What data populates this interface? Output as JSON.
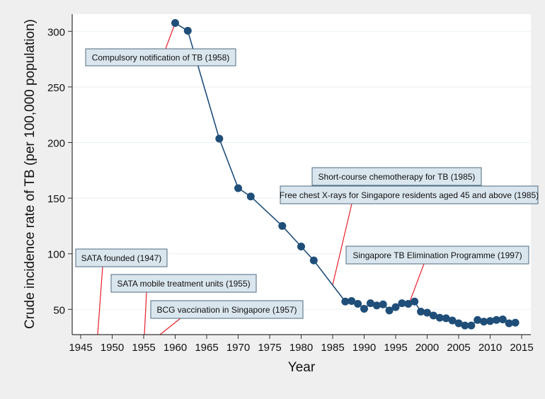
{
  "chart_data": {
    "type": "line",
    "title": "",
    "xlabel": "Year",
    "ylabel": "Crude incidence rate of TB (per 100,000 population)",
    "xlim": [
      1943.5,
      2016.5
    ],
    "ylim": [
      27.5,
      315
    ],
    "x_ticks": [
      1945,
      1950,
      1955,
      1960,
      1965,
      1970,
      1975,
      1980,
      1985,
      1990,
      1995,
      2000,
      2005,
      2010,
      2015
    ],
    "y_ticks": [
      50,
      100,
      150,
      200,
      250,
      300
    ],
    "grid": true,
    "series_color": "#1f4e79",
    "annotation_line_color": "#e8202a",
    "annotation_box_fill": "#dae6ee",
    "annotation_box_border": "#4e6a80",
    "series": [
      {
        "x": [
          1960,
          1962,
          1967,
          1970,
          1972,
          1977,
          1980,
          1982,
          1987,
          1988,
          1989,
          1990,
          1991,
          1992,
          1993,
          1994,
          1995,
          1996,
          1997,
          1998,
          1999,
          2000,
          2001,
          2002,
          2003,
          2004,
          2005,
          2006,
          2007,
          2008,
          2009,
          2010,
          2011,
          2012,
          2013,
          2014
        ],
        "y": [
          307.5,
          300.5,
          203.5,
          159,
          151.5,
          125,
          106.5,
          94,
          57,
          57.5,
          55,
          50.5,
          55.5,
          53.5,
          54.5,
          49,
          52,
          55.5,
          55,
          57,
          48,
          47,
          44.5,
          42.5,
          42,
          40,
          37.5,
          35.5,
          35.5,
          40.5,
          39,
          39.5,
          40.5,
          41,
          37.5,
          38
        ]
      }
    ],
    "annotations": [
      {
        "text": "Compulsory notification of TB (1958)",
        "year": 1958
      },
      {
        "text": "Short-course chemotherapy for TB (1985)",
        "year": 1985
      },
      {
        "text": "Free chest X-rays for Singapore residents aged 45 and above (1985)",
        "year": 1985
      },
      {
        "text": "Singapore TB Elimination Programme (1997)",
        "year": 1997
      },
      {
        "text": "SATA founded (1947)",
        "year": 1947
      },
      {
        "text": "SATA mobile treatment units (1955)",
        "year": 1955
      },
      {
        "text": "BCG vaccination in Singapore (1957)",
        "year": 1957
      }
    ]
  }
}
